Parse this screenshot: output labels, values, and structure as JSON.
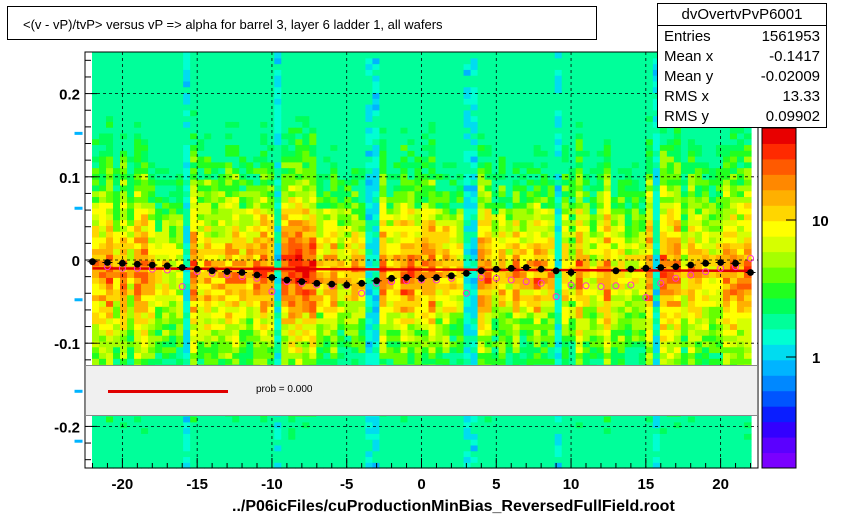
{
  "title": "<(v - vP)/tvP>  versus   vP => alpha for barrel 3, layer 6 ladder 1, all wafers",
  "stats": {
    "name": "dvOvertvPvP6001",
    "rows": [
      {
        "key": "Entries",
        "value": "1561953"
      },
      {
        "key": "Mean x",
        "value": "-0.1417"
      },
      {
        "key": "Mean y",
        "value": "-0.02009"
      },
      {
        "key": "RMS x",
        "value": "13.33"
      },
      {
        "key": "RMS y",
        "value": "0.09902"
      }
    ]
  },
  "legend": {
    "fit_label": "prob = 0.000"
  },
  "xlabel": "../P06icFiles/cuProductionMinBias_ReversedFullField.root",
  "colors": {
    "fit_line": "#e00000",
    "profile_markers": "#000000",
    "open_markers": "#ff33cc"
  },
  "chart_data": {
    "type": "heatmap",
    "x_range": [
      -22.5,
      22.5
    ],
    "y_range": [
      -0.25,
      0.25
    ],
    "x_ticks": [
      -20,
      -15,
      -10,
      -5,
      0,
      5,
      10,
      15,
      20
    ],
    "y_ticks": [
      -0.2,
      -0.1,
      0,
      0.1,
      0.2
    ],
    "y_tick_labels": [
      "-0.2",
      "-0.1",
      "0",
      "0.1",
      "0.2"
    ],
    "z_scale": "log",
    "z_ticks": [
      1,
      10
    ],
    "z_tick_labels": [
      "1",
      "10"
    ],
    "grid": true,
    "light_columns_x": [
      -15.8,
      -9.6,
      -3.2,
      3.2,
      9.1,
      15.6
    ],
    "profile": {
      "x": [
        -22,
        -21,
        -20,
        -19,
        -18,
        -17,
        -16,
        -15,
        -14,
        -13,
        -12,
        -11,
        -10,
        -9,
        -8,
        -7,
        -6,
        -5,
        -4,
        -3,
        -2,
        -1,
        0,
        1,
        2,
        3,
        4,
        5,
        6,
        7,
        8,
        9,
        10,
        13,
        14,
        15,
        16,
        17,
        18,
        19,
        20,
        21,
        22
      ],
      "y": [
        -0.002,
        -0.003,
        -0.004,
        -0.005,
        -0.006,
        -0.007,
        -0.009,
        -0.011,
        -0.013,
        -0.014,
        -0.015,
        -0.018,
        -0.021,
        -0.024,
        -0.026,
        -0.028,
        -0.029,
        -0.03,
        -0.028,
        -0.025,
        -0.022,
        -0.021,
        -0.022,
        -0.021,
        -0.019,
        -0.016,
        -0.013,
        -0.011,
        -0.01,
        -0.009,
        -0.011,
        -0.013,
        -0.015,
        -0.013,
        -0.011,
        -0.01,
        -0.009,
        -0.008,
        -0.006,
        -0.004,
        -0.003,
        -0.004,
        -0.015
      ]
    },
    "open_markers": {
      "x": [
        -21,
        -20,
        -19,
        -18,
        -17,
        -16,
        -15,
        -14,
        -13,
        -12,
        -11,
        -10,
        -9,
        -8,
        -7,
        -6,
        -5,
        -4,
        -3,
        -2,
        -1,
        0,
        1,
        2,
        3,
        4,
        5,
        6,
        7,
        8,
        9,
        10,
        11,
        12,
        13,
        14,
        15,
        16,
        17,
        18,
        19,
        20,
        21,
        22
      ],
      "y": [
        -0.008,
        -0.01,
        -0.01,
        -0.011,
        -0.012,
        -0.032,
        -0.014,
        -0.016,
        -0.018,
        -0.02,
        -0.022,
        -0.038,
        -0.026,
        -0.028,
        -0.03,
        -0.031,
        -0.031,
        -0.04,
        -0.028,
        -0.026,
        -0.025,
        -0.024,
        -0.024,
        -0.022,
        -0.04,
        -0.021,
        -0.022,
        -0.024,
        -0.026,
        -0.028,
        -0.044,
        -0.03,
        -0.031,
        -0.032,
        -0.031,
        -0.03,
        -0.045,
        -0.028,
        -0.022,
        -0.018,
        -0.014,
        -0.01,
        -0.008,
        0.002
      ]
    },
    "fit_line": {
      "x": [
        -22,
        22
      ],
      "y": [
        -0.01,
        -0.013
      ]
    },
    "legend_position": "inside-bottom"
  }
}
